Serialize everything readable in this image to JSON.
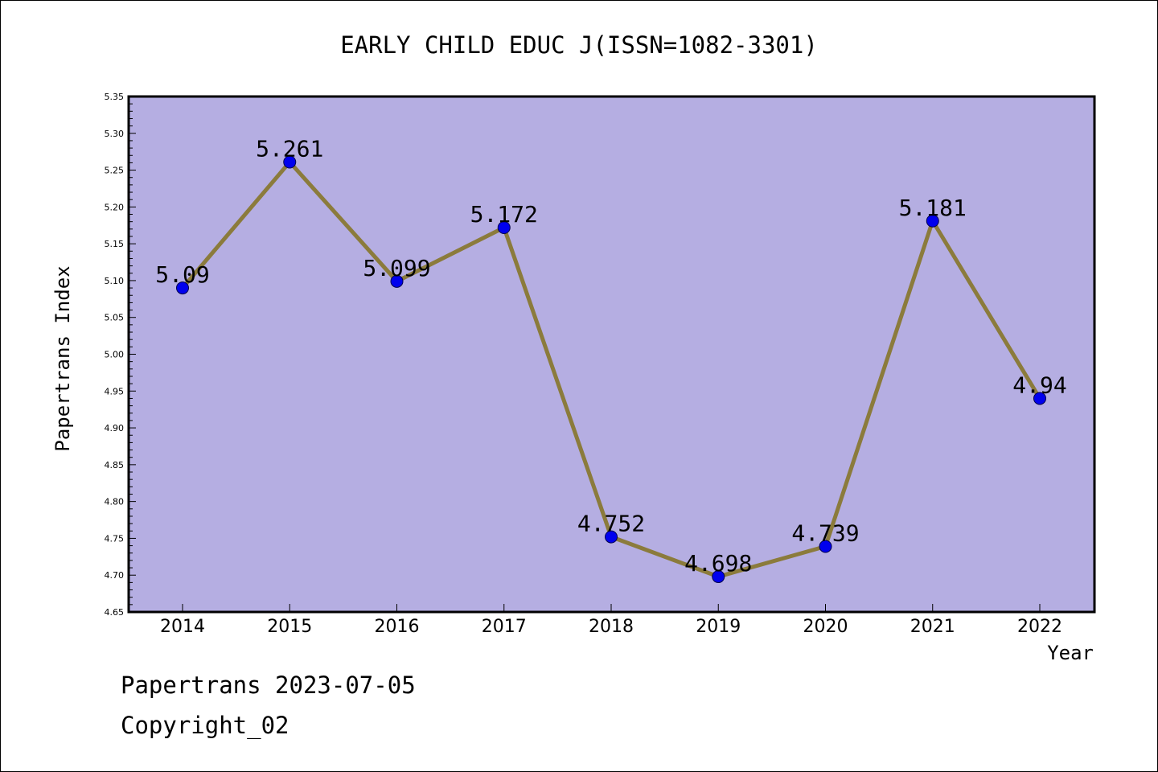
{
  "chart_data": {
    "type": "line",
    "title": "EARLY CHILD EDUC J(ISSN=1082-3301)",
    "xlabel": "Year",
    "ylabel": "Papertrans Index",
    "categories": [
      "2014",
      "2015",
      "2016",
      "2017",
      "2018",
      "2019",
      "2020",
      "2021",
      "2022"
    ],
    "series": [
      {
        "values": [
          5.09,
          5.261,
          5.099,
          5.172,
          4.752,
          4.698,
          4.739,
          5.181,
          4.94
        ],
        "labels": [
          "5.09",
          "5.261",
          "5.099",
          "5.172",
          "4.752",
          "4.698",
          "4.739",
          "5.181",
          "4.94"
        ]
      }
    ],
    "ylim": [
      4.65,
      5.35
    ],
    "y_ticks": [
      "4.65",
      "4.70",
      "4.75",
      "4.80",
      "4.85",
      "4.90",
      "4.95",
      "5.00",
      "5.05",
      "5.10",
      "5.15",
      "5.20",
      "5.25",
      "5.30",
      "5.35"
    ],
    "grid": false,
    "legend": "none",
    "colors": {
      "plot_background": "#b5aee2",
      "line": "#8b7b3c",
      "marker": "#0000ee",
      "axis": "#000000"
    }
  },
  "footer": {
    "source": "Papertrans 2023-07-05",
    "copyright": "Copyright_02"
  }
}
